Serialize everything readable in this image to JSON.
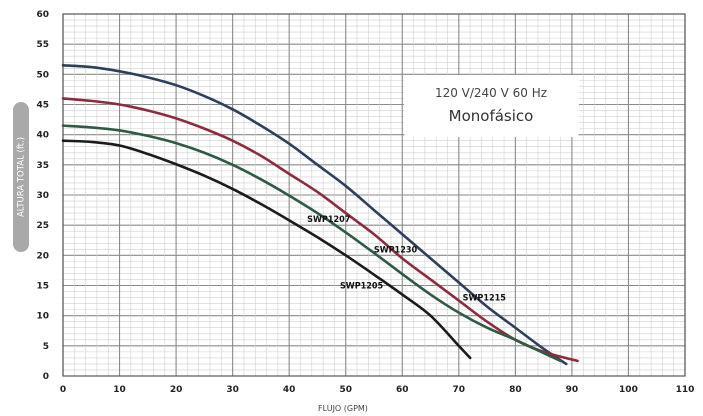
{
  "chart_data": {
    "type": "line",
    "xlabel": "FLUJO (GPM)",
    "ylabel": "ALTURA TOTAL (ft.)",
    "xlim": [
      0,
      110
    ],
    "ylim": [
      0,
      60
    ],
    "xticks": [
      0,
      10,
      20,
      30,
      40,
      50,
      60,
      70,
      80,
      90,
      100,
      110
    ],
    "yticks": [
      0,
      5,
      10,
      15,
      20,
      25,
      30,
      35,
      40,
      45,
      50,
      55,
      60
    ],
    "grid": true,
    "annotation": {
      "line1": "120 V/240 V 60 Hz",
      "line2": "Monofásico"
    },
    "series": [
      {
        "name": "SWP1215",
        "color": "#2e3f5a",
        "x": [
          0,
          5,
          10,
          15,
          20,
          25,
          30,
          35,
          40,
          45,
          50,
          55,
          60,
          65,
          70,
          75,
          80,
          85,
          89
        ],
        "y": [
          51.5,
          51.2,
          50.5,
          49.5,
          48.2,
          46.4,
          44.2,
          41.5,
          38.5,
          35.0,
          31.5,
          27.5,
          23.5,
          19.5,
          15.5,
          11.5,
          8.0,
          4.5,
          2
        ]
      },
      {
        "name": "SWP1230",
        "color": "#8e2b3e",
        "x": [
          0,
          5,
          10,
          15,
          20,
          25,
          30,
          35,
          40,
          45,
          50,
          55,
          60,
          65,
          70,
          75,
          80,
          85,
          91
        ],
        "y": [
          46,
          45.6,
          45,
          44,
          42.7,
          41,
          39,
          36.5,
          33.5,
          30.5,
          27,
          23.5,
          19.5,
          16,
          12.5,
          9,
          6,
          4,
          2.5
        ]
      },
      {
        "name": "SWP1207",
        "color": "#2f5a43",
        "x": [
          0,
          5,
          10,
          15,
          20,
          25,
          30,
          35,
          40,
          45,
          50,
          55,
          60,
          65,
          70,
          75,
          80,
          85,
          88
        ],
        "y": [
          41.5,
          41.2,
          40.7,
          39.8,
          38.6,
          37,
          35,
          32.6,
          29.9,
          27,
          23.8,
          20.4,
          16.9,
          13.5,
          10.5,
          8,
          6,
          3.8,
          2.5
        ]
      },
      {
        "name": "SWP1205",
        "color": "#1b1b1b",
        "x": [
          0,
          5,
          10,
          15,
          20,
          25,
          30,
          35,
          40,
          45,
          50,
          55,
          60,
          65,
          70,
          72
        ],
        "y": [
          39,
          38.8,
          38.2,
          36.8,
          35.1,
          33.2,
          31,
          28.5,
          25.8,
          23,
          20,
          16.8,
          13.5,
          10,
          5,
          3
        ]
      }
    ],
    "labels": [
      {
        "text": "SWP1207",
        "x": 47,
        "y": 25.5
      },
      {
        "text": "SWP1230",
        "x": 58.8,
        "y": 20.5
      },
      {
        "text": "SWP1205",
        "x": 52.8,
        "y": 14.5
      },
      {
        "text": "SWP1215",
        "x": 74.5,
        "y": 12.5
      }
    ]
  }
}
